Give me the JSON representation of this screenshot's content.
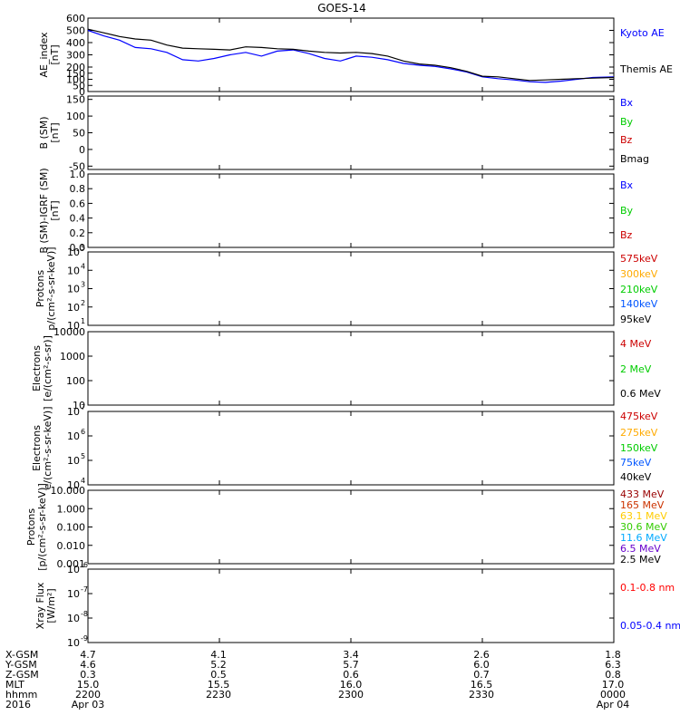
{
  "chart_data": {
    "type": "line",
    "title": "GOES-14",
    "panels": [
      {
        "id": "ae",
        "ylabel": [
          "AE_index",
          "[nT]"
        ],
        "scale": "linear",
        "ylim": [
          0,
          600
        ],
        "ticks": [
          0,
          50,
          100,
          150,
          200,
          300,
          400,
          500,
          600
        ],
        "tick_labels": [
          "0",
          "50",
          "100",
          "150",
          "200",
          "300",
          "400",
          "500",
          "600"
        ],
        "legend": [
          {
            "label": "Kyoto AE",
            "color": "#0000ff"
          },
          {
            "label": "Themis AE",
            "color": "#000000"
          }
        ],
        "series": [
          {
            "name": "Kyoto AE",
            "color": "#0000ff",
            "x": [
              0,
              0.03,
              0.06,
              0.09,
              0.12,
              0.15,
              0.18,
              0.21,
              0.24,
              0.27,
              0.3,
              0.33,
              0.36,
              0.39,
              0.42,
              0.45,
              0.48,
              0.51,
              0.54,
              0.57,
              0.6,
              0.63,
              0.66,
              0.69,
              0.72,
              0.75,
              0.78,
              0.81,
              0.84,
              0.87,
              0.9,
              0.93,
              0.96,
              1.0
            ],
            "values": [
              500,
              455,
              420,
              360,
              350,
              320,
              260,
              250,
              270,
              300,
              320,
              290,
              330,
              340,
              310,
              270,
              250,
              290,
              280,
              260,
              230,
              215,
              205,
              185,
              160,
              120,
              105,
              95,
              80,
              75,
              85,
              100,
              115,
              120
            ]
          },
          {
            "name": "Themis AE",
            "color": "#000000",
            "x": [
              0,
              0.03,
              0.06,
              0.09,
              0.12,
              0.15,
              0.18,
              0.21,
              0.24,
              0.27,
              0.3,
              0.33,
              0.36,
              0.39,
              0.42,
              0.45,
              0.48,
              0.51,
              0.54,
              0.57,
              0.6,
              0.63,
              0.66,
              0.69,
              0.72,
              0.75,
              0.78,
              0.81,
              0.84,
              0.87,
              0.9,
              0.93,
              0.96,
              1.0
            ],
            "values": [
              510,
              480,
              450,
              430,
              420,
              380,
              355,
              350,
              345,
              340,
              365,
              360,
              350,
              345,
              330,
              320,
              315,
              320,
              310,
              290,
              250,
              225,
              215,
              195,
              165,
              125,
              120,
              105,
              90,
              95,
              100,
              105,
              110,
              115
            ]
          }
        ]
      },
      {
        "id": "b",
        "ylabel": [
          "B (SM)",
          "[nT]"
        ],
        "scale": "linear",
        "ylim": [
          -60,
          160
        ],
        "ticks": [
          -50,
          0,
          50,
          100,
          150
        ],
        "tick_labels": [
          "-50",
          "0",
          "50",
          "100",
          "150"
        ],
        "legend": [
          {
            "label": "Bx",
            "color": "#0000ff"
          },
          {
            "label": "By",
            "color": "#00cc00"
          },
          {
            "label": "Bz",
            "color": "#cc0000"
          },
          {
            "label": "Bmag",
            "color": "#000000"
          }
        ]
      },
      {
        "id": "bigrf",
        "ylabel": [
          "B (SM)-IGRF (SM)",
          "[nT]"
        ],
        "scale": "linear",
        "ylim": [
          0,
          1
        ],
        "ticks": [
          0,
          0.2,
          0.4,
          0.6,
          0.8,
          1.0
        ],
        "tick_labels": [
          "0.0",
          "0.2",
          "0.4",
          "0.6",
          "0.8",
          "1.0"
        ],
        "legend": [
          {
            "label": "Bx",
            "color": "#0000ff"
          },
          {
            "label": "By",
            "color": "#00cc00"
          },
          {
            "label": "Bz",
            "color": "#cc0000"
          }
        ]
      },
      {
        "id": "protons_mev",
        "ylabel": [
          "Protons",
          "p/(cm²-s-sr-keV)]"
        ],
        "scale": "log",
        "ylim": [
          1,
          5
        ],
        "ticks": [
          1,
          2,
          3,
          4,
          5
        ],
        "tick_labels": [
          "10",
          "10",
          "10",
          "10",
          "10"
        ],
        "tick_sups": [
          "1",
          "2",
          "3",
          "4",
          "5"
        ],
        "legend": [
          {
            "label": "575keV",
            "color": "#cc0000"
          },
          {
            "label": "300keV",
            "color": "#ffaa00"
          },
          {
            "label": "210keV",
            "color": "#00cc00"
          },
          {
            "label": "140keV",
            "color": "#0055ff"
          },
          {
            "label": "95keV",
            "color": "#000000"
          }
        ]
      },
      {
        "id": "electrons_mev",
        "ylabel": [
          "Electrons",
          "[e/(cm²-s-sr)]"
        ],
        "scale": "log",
        "ylim": [
          1,
          4
        ],
        "ticks": [
          1,
          2,
          3,
          4
        ],
        "tick_labels": [
          "10",
          "100",
          "1000",
          "10000"
        ],
        "legend": [
          {
            "label": "4 MeV",
            "color": "#cc0000"
          },
          {
            "label": "2 MeV",
            "color": "#00cc00"
          },
          {
            "label": "0.6 MeV",
            "color": "#000000"
          }
        ]
      },
      {
        "id": "electrons_kev",
        "ylabel": [
          "Electrons",
          "e/(cm²-s-sr-keV)]"
        ],
        "scale": "log",
        "ylim": [
          4,
          7
        ],
        "ticks": [
          4,
          5,
          6,
          7
        ],
        "tick_labels": [
          "10",
          "10",
          "10",
          "10"
        ],
        "tick_sups": [
          "4",
          "5",
          "6",
          "7"
        ],
        "legend": [
          {
            "label": "475keV",
            "color": "#cc0000"
          },
          {
            "label": "275keV",
            "color": "#ffaa00"
          },
          {
            "label": "150keV",
            "color": "#00cc00"
          },
          {
            "label": "75keV",
            "color": "#0055ff"
          },
          {
            "label": "40keV",
            "color": "#000000"
          }
        ]
      },
      {
        "id": "protons_hi",
        "ylabel": [
          "Protons",
          "[p/(cm²-s-sr-keV)]"
        ],
        "scale": "log",
        "ylim": [
          -3,
          1
        ],
        "ticks": [
          -3,
          -2,
          -1,
          0,
          1
        ],
        "tick_labels": [
          "0.001",
          "0.010",
          "0.100",
          "1.000",
          "10.000"
        ],
        "legend": [
          {
            "label": "433 MeV",
            "color": "#990000"
          },
          {
            "label": "165 MeV",
            "color": "#cc3300"
          },
          {
            "label": "63.1 MeV",
            "color": "#ffcc00"
          },
          {
            "label": "30.6 MeV",
            "color": "#33cc00"
          },
          {
            "label": "11.6 MeV",
            "color": "#00aaff"
          },
          {
            "label": "6.5 MeV",
            "color": "#6600cc"
          },
          {
            "label": "2.5 MeV",
            "color": "#000000"
          }
        ]
      },
      {
        "id": "xray",
        "ylabel": [
          "Xray Flux",
          "[W/m²]"
        ],
        "scale": "log",
        "ylim": [
          -9,
          -6
        ],
        "ticks": [
          -9,
          -8,
          -7,
          -6
        ],
        "tick_labels": [
          "10",
          "10",
          "10",
          "10"
        ],
        "tick_sups": [
          "-9",
          "-8",
          "-7",
          "-6"
        ],
        "legend": [
          {
            "label": "0.1-0.8 nm",
            "color": "#ff0000"
          },
          {
            "label": "0.05-0.4 nm",
            "color": "#0000ff"
          }
        ]
      }
    ],
    "x_axis": {
      "row_labels": [
        "X-GSM",
        "Y-GSM",
        "Z-GSM",
        "MLT",
        "hhmm",
        "2016"
      ],
      "columns": [
        [
          "4.7",
          "4.6",
          "0.3",
          "15.0",
          "2200",
          "Apr 03"
        ],
        [
          "4.1",
          "5.2",
          "0.5",
          "15.5",
          "2230",
          ""
        ],
        [
          "3.4",
          "5.7",
          "0.6",
          "16.0",
          "2300",
          ""
        ],
        [
          "2.6",
          "6.0",
          "0.7",
          "16.5",
          "2330",
          ""
        ],
        [
          "1.8",
          "6.3",
          "0.8",
          "17.0",
          "0000",
          "Apr 04"
        ]
      ]
    }
  }
}
